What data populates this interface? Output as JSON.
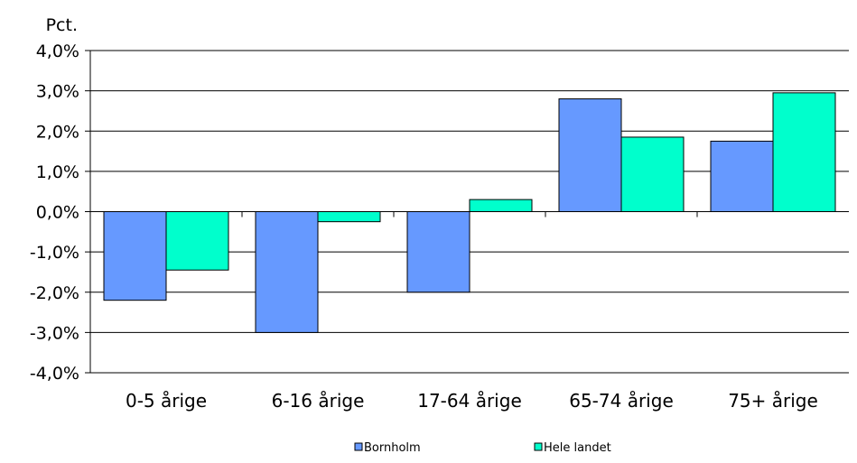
{
  "chart_data": {
    "type": "bar",
    "ylabel": "Pct.",
    "ylim": [
      -4.0,
      4.0
    ],
    "yticks": [
      "4,0%",
      "3,0%",
      "2,0%",
      "1,0%",
      "0,0%",
      "-1,0%",
      "-2,0%",
      "-3,0%",
      "-4,0%"
    ],
    "ytick_values": [
      4,
      3,
      2,
      1,
      0,
      -1,
      -2,
      -3,
      -4
    ],
    "categories": [
      "0-5 årige",
      "6-16 årige",
      "17-64 årige",
      "65-74 årige",
      "75+ årige"
    ],
    "series": [
      {
        "name": "Bornholm",
        "color": "#6699ff",
        "values": [
          -2.2,
          -3.0,
          -2.0,
          2.8,
          1.75
        ]
      },
      {
        "name": "Hele landet",
        "color": "#00ffcc",
        "values": [
          -1.45,
          -0.25,
          0.3,
          1.85,
          2.95
        ]
      }
    ],
    "grid": true,
    "legend_position": "bottom"
  }
}
